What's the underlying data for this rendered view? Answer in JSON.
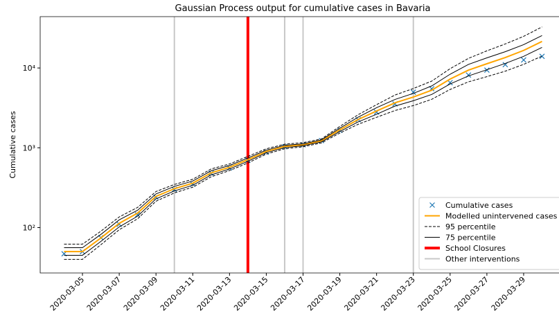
{
  "chart_data": {
    "type": "line",
    "title": "Gaussian Process output for cumulative cases in Bavaria",
    "y_label": "Cumulative cases",
    "log_y": true,
    "legend": "lower right",
    "x": [
      "2020-03-04",
      "2020-03-05",
      "2020-03-06",
      "2020-03-07",
      "2020-03-08",
      "2020-03-09",
      "2020-03-10",
      "2020-03-11",
      "2020-03-12",
      "2020-03-13",
      "2020-03-14",
      "2020-03-15",
      "2020-03-16",
      "2020-03-17",
      "2020-03-18",
      "2020-03-19",
      "2020-03-20",
      "2020-03-21",
      "2020-03-22",
      "2020-03-23",
      "2020-03-24",
      "2020-03-25",
      "2020-03-26",
      "2020-03-27",
      "2020-03-28",
      "2020-03-29",
      "2020-03-30"
    ],
    "xticks": [
      "2020-03-05",
      "2020-03-07",
      "2020-03-09",
      "2020-03-11",
      "2020-03-13",
      "2020-03-15",
      "2020-03-17",
      "2020-03-19",
      "2020-03-21",
      "2020-03-23",
      "2020-03-25",
      "2020-03-27",
      "2020-03-29"
    ],
    "ylim": [
      27,
      44000
    ],
    "yticks": [
      {
        "value": 100,
        "label": "10²"
      },
      {
        "value": 1000,
        "label": "10³"
      },
      {
        "value": 10000,
        "label": "10⁴"
      }
    ],
    "series": [
      {
        "name": "Cumulative cases",
        "marker": "x",
        "color": "#1f77b4",
        "values": [
          47,
          50,
          75,
          110,
          145,
          240,
          300,
          350,
          480,
          560,
          700,
          880,
          1030,
          1090,
          1230,
          1650,
          2250,
          2800,
          3550,
          4970,
          5500,
          6550,
          8150,
          9400,
          11000,
          12600,
          14000
        ]
      },
      {
        "name": "Modelled unintervened cases",
        "color": "#ffa500",
        "width": 2,
        "values": [
          50,
          50,
          74,
          113,
          152,
          246,
          307,
          360,
          485,
          570,
          710,
          900,
          1040,
          1090,
          1220,
          1680,
          2260,
          2890,
          3660,
          4320,
          5270,
          7260,
          9400,
          11300,
          13500,
          16600,
          21500
        ]
      },
      {
        "name": "95 percentile",
        "color": "#000000",
        "width": 1,
        "dashed": true,
        "values": [
          62,
          62,
          90,
          136,
          179,
          283,
          347,
          403,
          543,
          627,
          781,
          972,
          1110,
          1160,
          1290,
          1850,
          2600,
          3470,
          4580,
          5530,
          6850,
          9800,
          13200,
          16400,
          20000,
          24900,
          32700
        ],
        "lower": [
          40,
          40,
          61,
          94,
          129,
          214,
          272,
          321,
          433,
          518,
          645,
          833,
          972,
          1030,
          1150,
          1530,
          1970,
          2410,
          2930,
          3380,
          4050,
          5380,
          6710,
          7790,
          9120,
          11100,
          14100
        ]
      },
      {
        "name": "75 percentile",
        "color": "#000000",
        "width": 1,
        "values": [
          56,
          56,
          82,
          125,
          165,
          264,
          328,
          383,
          515,
          600,
          745,
          935,
          1075,
          1120,
          1255,
          1760,
          2420,
          3180,
          4030,
          4800,
          5960,
          8350,
          11100,
          13400,
          16000,
          19600,
          25500
        ],
        "lower": [
          45,
          45,
          67,
          102,
          139,
          229,
          288,
          339,
          457,
          542,
          677,
          867,
          1005,
          1060,
          1185,
          1600,
          2110,
          2630,
          3330,
          3890,
          4660,
          6310,
          7960,
          9500,
          11400,
          14000,
          18100
        ]
      }
    ],
    "vlines": [
      {
        "name": "School Closures",
        "color": "#ff0000",
        "width": 4,
        "x": [
          "2020-03-14"
        ]
      },
      {
        "name": "Other interventions",
        "color": "#c8c8c8",
        "width": 2,
        "x": [
          "2020-03-10",
          "2020-03-16",
          "2020-03-17",
          "2020-03-23"
        ]
      }
    ]
  }
}
